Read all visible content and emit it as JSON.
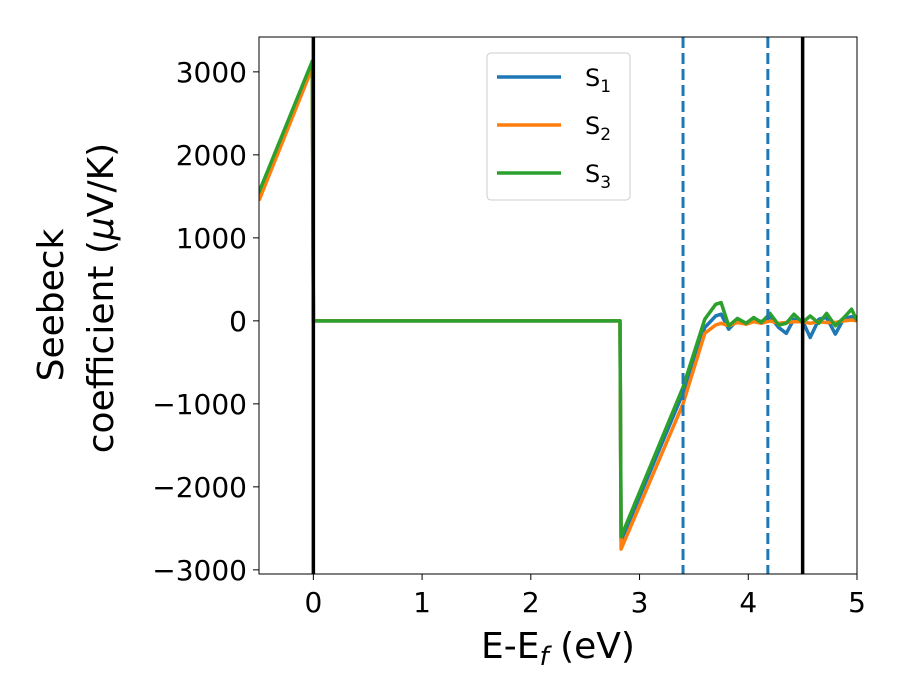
{
  "chart_data": {
    "type": "line",
    "title": "",
    "xlabel": {
      "main": "E-E",
      "sub": "f",
      "rest": " (eV)"
    },
    "ylabel": {
      "line1": "Seebeck",
      "line2_pre": "coefficient  (",
      "mu": "μ",
      "line2_post": "V/K)"
    },
    "xlim": [
      -0.5,
      5
    ],
    "ylim": [
      -3050,
      3420
    ],
    "xticks": [
      0,
      1,
      2,
      3,
      4,
      5
    ],
    "xtick_labels": [
      "0",
      "1",
      "2",
      "3",
      "4",
      "5"
    ],
    "yticks": [
      -3000,
      -2000,
      -1000,
      0,
      1000,
      2000,
      3000
    ],
    "ytick_labels": [
      "−3000",
      "−2000",
      "−1000",
      "0",
      "1000",
      "2000",
      "3000"
    ],
    "grid": false,
    "legend_position": "top-center",
    "vlines": [
      {
        "x": 0.0,
        "style": "solid",
        "color": "#000000"
      },
      {
        "x": 4.5,
        "style": "solid",
        "color": "#000000"
      },
      {
        "x": 3.4,
        "style": "dashed",
        "color": "#1f77b4"
      },
      {
        "x": 4.18,
        "style": "dashed",
        "color": "#1f77b4"
      }
    ],
    "series": [
      {
        "name": "S",
        "sub": "1",
        "color": "#1f77b4",
        "x": [
          -0.5,
          -0.01,
          0.0,
          0.01,
          2.82,
          2.83,
          3.4,
          3.6,
          3.7,
          3.75,
          3.82,
          3.9,
          3.98,
          4.05,
          4.12,
          4.2,
          4.28,
          4.35,
          4.42,
          4.5,
          4.57,
          4.65,
          4.72,
          4.8,
          4.88,
          4.95,
          5.0
        ],
        "y": [
          1500,
          3100,
          0,
          0,
          0,
          -2650,
          -870,
          -80,
          60,
          80,
          -100,
          10,
          -40,
          20,
          -10,
          50,
          -80,
          -150,
          20,
          0,
          -200,
          20,
          40,
          -160,
          30,
          50,
          0
        ]
      },
      {
        "name": "S",
        "sub": "2",
        "color": "#ff7f0e",
        "x": [
          -0.5,
          -0.01,
          0.0,
          0.01,
          2.82,
          2.83,
          3.4,
          3.6,
          3.7,
          3.75,
          3.82,
          3.9,
          3.98,
          4.05,
          4.12,
          4.2,
          4.28,
          4.35,
          4.42,
          4.5,
          4.57,
          4.65,
          4.72,
          4.8,
          4.88,
          4.95,
          5.0
        ],
        "y": [
          1450,
          3050,
          0,
          0,
          0,
          -2750,
          -1000,
          -150,
          -50,
          -30,
          -60,
          -20,
          -40,
          -10,
          -30,
          0,
          -30,
          -20,
          -10,
          -10,
          -30,
          -10,
          -20,
          -20,
          0,
          10,
          0
        ]
      },
      {
        "name": "S",
        "sub": "3",
        "color": "#2ca02c",
        "x": [
          -0.5,
          -0.01,
          0.0,
          0.01,
          2.82,
          2.83,
          3.4,
          3.6,
          3.7,
          3.75,
          3.82,
          3.9,
          3.98,
          4.05,
          4.12,
          4.2,
          4.28,
          4.35,
          4.42,
          4.5,
          4.57,
          4.65,
          4.72,
          4.8,
          4.88,
          4.95,
          5.0
        ],
        "y": [
          1550,
          3130,
          0,
          0,
          0,
          -2600,
          -800,
          20,
          200,
          220,
          -60,
          30,
          -30,
          40,
          -20,
          90,
          -50,
          -30,
          80,
          -20,
          60,
          -30,
          90,
          -60,
          40,
          140,
          0
        ]
      }
    ]
  }
}
